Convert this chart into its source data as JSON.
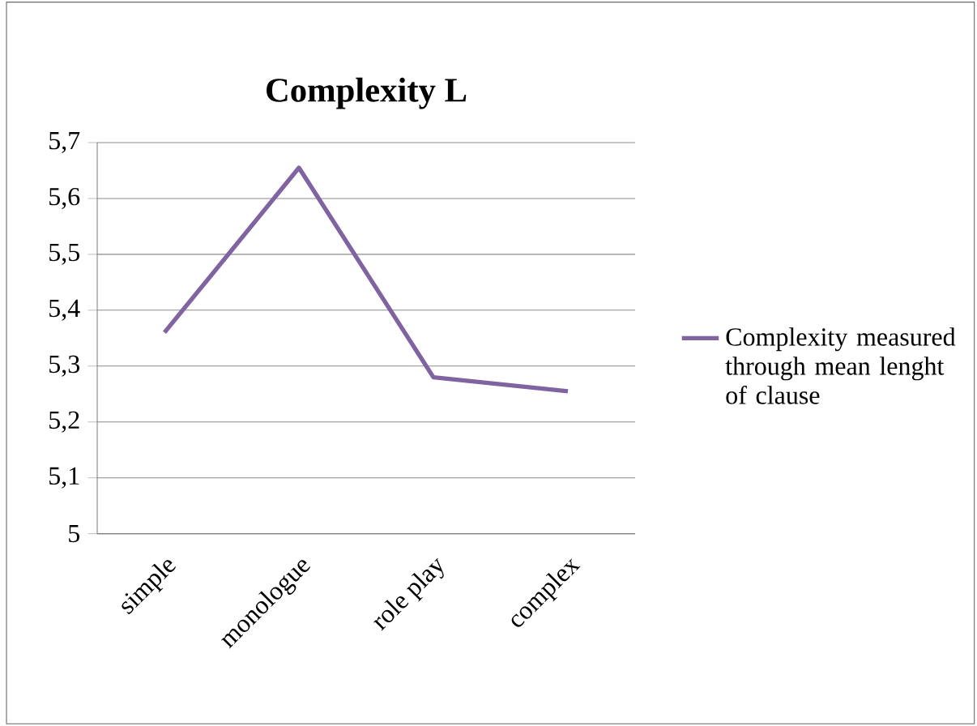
{
  "chart_data": {
    "type": "line",
    "title": "Complexity L",
    "categories": [
      "simple",
      "monologue",
      "role play",
      "complex"
    ],
    "series": [
      {
        "name": "Complexity measured through mean lenght of clause",
        "color": "#8064a2",
        "values": [
          5.36,
          5.655,
          5.28,
          5.255
        ]
      }
    ],
    "ylim": [
      5,
      5.7
    ],
    "yticks": [
      {
        "value": 5,
        "label": "5"
      },
      {
        "value": 5.1,
        "label": "5,1"
      },
      {
        "value": 5.2,
        "label": "5,2"
      },
      {
        "value": 5.3,
        "label": "5,3"
      },
      {
        "value": 5.4,
        "label": "5,4"
      },
      {
        "value": 5.5,
        "label": "5,5"
      },
      {
        "value": 5.6,
        "label": "5,6"
      },
      {
        "value": 5.7,
        "label": "5,7"
      }
    ],
    "grid": "y",
    "legend": "right",
    "marker": "none",
    "line_style": "solid"
  }
}
